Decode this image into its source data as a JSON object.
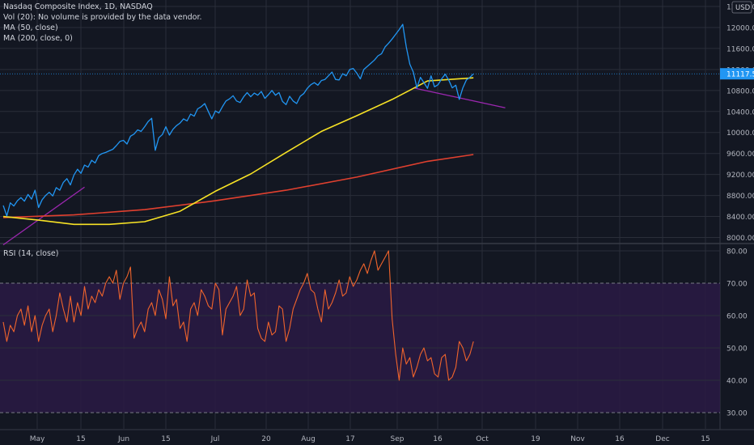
{
  "main_legend": {
    "title": "Nasdaq Composite Index, 1D, NASDAQ",
    "vol": "Vol (20): No volume is provided by the data vendor.",
    "ma50": "MA (50, close)",
    "ma200": "MA (200, close, 0)"
  },
  "rsi_legend": {
    "title": "RSI (14, close)"
  },
  "colors": {
    "background": "#131722",
    "price": "#2196f3",
    "ma50": "#f7e225",
    "ma200": "#e0402f",
    "trendline": "#9c27b0",
    "rsi": "#f0642c",
    "rsi_band": "#2a1a44",
    "grid": "#2a2e39",
    "axis_text": "#b2b5be",
    "price_badge": "#2196f3"
  },
  "chart_data": [
    {
      "type": "line",
      "title": "Nasdaq Composite Index, 1D, NASDAQ",
      "y_ticks": [
        "8000.00",
        "8400.00",
        "8800.00",
        "9200.00",
        "9600.00",
        "10000.00",
        "10400.00",
        "10800.00",
        "11200.00",
        "11600.00",
        "12000.00",
        "12400.00"
      ],
      "ylim": [
        7900,
        12400
      ],
      "x_ticks": [
        "May",
        "15",
        "Jun",
        "15",
        "Jul",
        "20",
        "Aug",
        "17",
        "Sep",
        "16",
        "Oct",
        "19",
        "Nov",
        "16",
        "Dec",
        "15"
      ],
      "last_price_label": "11117.53",
      "currency_label": "USD",
      "series": [
        {
          "name": "Close",
          "x": [
            0,
            1,
            2,
            3,
            4,
            5,
            6,
            7,
            8,
            9,
            10,
            11,
            12,
            13,
            14,
            15,
            16,
            17,
            18,
            19,
            20,
            21,
            22,
            23,
            24,
            25,
            26,
            27,
            28,
            29,
            30,
            31,
            32,
            33,
            34,
            35,
            36,
            37,
            38,
            39,
            40,
            41,
            42,
            43,
            44,
            45,
            46,
            47,
            48,
            49,
            50,
            51,
            52,
            53,
            54,
            55,
            56,
            57,
            58,
            59,
            60,
            61,
            62,
            63,
            64,
            65,
            66,
            67,
            68,
            69,
            70,
            71,
            72,
            73,
            74,
            75,
            76,
            77,
            78,
            79,
            80,
            81,
            82,
            83,
            84,
            85,
            86,
            87,
            88,
            89,
            90,
            91,
            92,
            93,
            94,
            95,
            96,
            97,
            98,
            99,
            100,
            101,
            102,
            103,
            104,
            105,
            106,
            107,
            108,
            109,
            110,
            111,
            112,
            113,
            114,
            115,
            116,
            117,
            118,
            119,
            120,
            121,
            122,
            123,
            124,
            125,
            126,
            127,
            128,
            129,
            130,
            131,
            132,
            133
          ],
          "values": [
            8610,
            8410,
            8660,
            8600,
            8700,
            8760,
            8690,
            8820,
            8730,
            8900,
            8570,
            8720,
            8800,
            8860,
            8790,
            8950,
            8900,
            9050,
            9120,
            9000,
            9190,
            9300,
            9220,
            9380,
            9340,
            9470,
            9420,
            9560,
            9600,
            9620,
            9650,
            9680,
            9750,
            9830,
            9850,
            9780,
            9930,
            9970,
            10050,
            10020,
            10110,
            10210,
            10270,
            9660,
            9900,
            9960,
            10110,
            9950,
            10060,
            10130,
            10180,
            10260,
            10220,
            10350,
            10310,
            10450,
            10490,
            10550,
            10400,
            10260,
            10410,
            10370,
            10490,
            10600,
            10640,
            10700,
            10600,
            10570,
            10680,
            10760,
            10680,
            10750,
            10710,
            10780,
            10650,
            10720,
            10800,
            10710,
            10760,
            10590,
            10530,
            10690,
            10600,
            10550,
            10690,
            10740,
            10840,
            10910,
            10950,
            10900,
            10990,
            11010,
            11080,
            11150,
            11010,
            11000,
            11120,
            11080,
            11200,
            11220,
            11130,
            11020,
            11200,
            11260,
            11320,
            11380,
            11460,
            11500,
            11630,
            11700,
            11780,
            11870,
            11960,
            12060,
            11630,
            11300,
            11150,
            10850,
            11050,
            10950,
            10840,
            11080,
            10870,
            10910,
            11020,
            11110,
            11000,
            10850,
            10900,
            10630,
            10850,
            11000,
            11050,
            11117
          ]
        },
        {
          "name": "MA (50, close)",
          "x": [
            0,
            10,
            20,
            30,
            40,
            50,
            60,
            70,
            80,
            90,
            100,
            110,
            120,
            133
          ],
          "values": [
            8400,
            8330,
            8250,
            8250,
            8300,
            8500,
            8880,
            9210,
            9620,
            10020,
            10320,
            10630,
            10980,
            11040
          ]
        },
        {
          "name": "MA (200, close, 0)",
          "x": [
            0,
            20,
            40,
            60,
            80,
            100,
            120,
            133
          ],
          "values": [
            8380,
            8430,
            8530,
            8700,
            8900,
            9150,
            9450,
            9580
          ]
        }
      ],
      "trendlines": [
        {
          "x": [
            0,
            23
          ],
          "values": [
            7860,
            8960
          ]
        },
        {
          "x": [
            116,
            142
          ],
          "values": [
            10850,
            10470
          ]
        }
      ]
    },
    {
      "type": "line",
      "title": "RSI (14, close)",
      "y_ticks": [
        "30.00",
        "40.00",
        "50.00",
        "60.00",
        "70.00",
        "80.00"
      ],
      "ylim": [
        25,
        82
      ],
      "band": [
        30,
        70
      ],
      "series": [
        {
          "name": "RSI (14, close)",
          "x": [
            0,
            1,
            2,
            3,
            4,
            5,
            6,
            7,
            8,
            9,
            10,
            11,
            12,
            13,
            14,
            15,
            16,
            17,
            18,
            19,
            20,
            21,
            22,
            23,
            24,
            25,
            26,
            27,
            28,
            29,
            30,
            31,
            32,
            33,
            34,
            35,
            36,
            37,
            38,
            39,
            40,
            41,
            42,
            43,
            44,
            45,
            46,
            47,
            48,
            49,
            50,
            51,
            52,
            53,
            54,
            55,
            56,
            57,
            58,
            59,
            60,
            61,
            62,
            63,
            64,
            65,
            66,
            67,
            68,
            69,
            70,
            71,
            72,
            73,
            74,
            75,
            76,
            77,
            78,
            79,
            80,
            81,
            82,
            83,
            84,
            85,
            86,
            87,
            88,
            89,
            90,
            91,
            92,
            93,
            94,
            95,
            96,
            97,
            98,
            99,
            100,
            101,
            102,
            103,
            104,
            105,
            106,
            107,
            108,
            109,
            110,
            111,
            112,
            113,
            114,
            115,
            116,
            117,
            118,
            119,
            120,
            121,
            122,
            123,
            124,
            125,
            126,
            127,
            128,
            129,
            130,
            131,
            132,
            133
          ],
          "values": [
            58,
            52,
            57,
            55,
            60,
            62,
            57,
            63,
            55,
            60,
            52,
            57,
            60,
            62,
            55,
            60,
            67,
            62,
            58,
            66,
            58,
            64,
            60,
            69,
            62,
            66,
            64,
            68,
            66,
            70,
            72,
            70,
            74,
            65,
            70,
            72,
            75,
            53,
            56,
            58,
            55,
            62,
            64,
            60,
            68,
            65,
            59,
            72,
            63,
            65,
            56,
            58,
            52,
            62,
            64,
            60,
            68,
            66,
            63,
            62,
            70,
            68,
            54,
            62,
            64,
            66,
            69,
            60,
            62,
            71,
            66,
            67,
            56,
            53,
            52,
            58,
            54,
            55,
            63,
            62,
            52,
            56,
            62,
            65,
            68,
            70,
            73,
            68,
            67,
            62,
            58,
            68,
            62,
            64,
            67,
            71,
            66,
            67,
            72,
            69,
            71,
            74,
            76,
            73,
            77,
            80,
            74,
            76,
            78,
            80,
            59,
            48,
            40,
            50,
            45,
            47,
            41,
            44,
            48,
            50,
            46,
            47,
            42,
            41,
            47,
            48,
            40,
            41,
            44,
            52,
            50,
            46,
            48,
            52
          ]
        }
      ]
    }
  ]
}
